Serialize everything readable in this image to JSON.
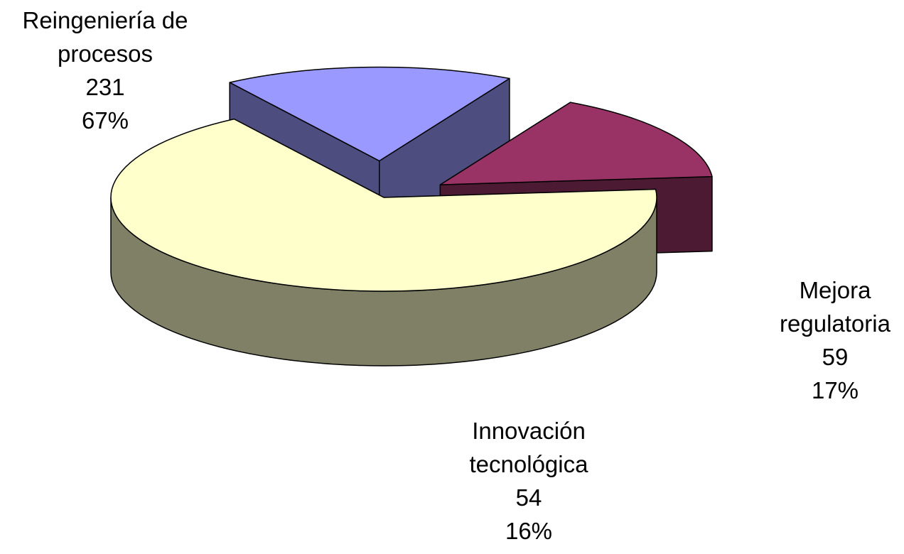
{
  "chart_data": {
    "type": "pie",
    "three_d": true,
    "exploded": true,
    "legend": "none",
    "slices": [
      {
        "label_lines": [
          "Reingeniería de",
          "procesos"
        ],
        "value": 231,
        "value_label": "231",
        "percent_label": "67%",
        "top_color": "#FFFFCC",
        "side_color": "#808066"
      },
      {
        "label_lines": [
          "Mejora",
          "regulatoria"
        ],
        "value": 59,
        "value_label": "59",
        "percent_label": "17%",
        "top_color": "#9999FF",
        "side_color": "#4D4D80"
      },
      {
        "label_lines": [
          "Innovación",
          "tecnológica"
        ],
        "value": 54,
        "value_label": "54",
        "percent_label": "16%",
        "top_color": "#993366",
        "side_color": "#4D1A33"
      }
    ]
  }
}
